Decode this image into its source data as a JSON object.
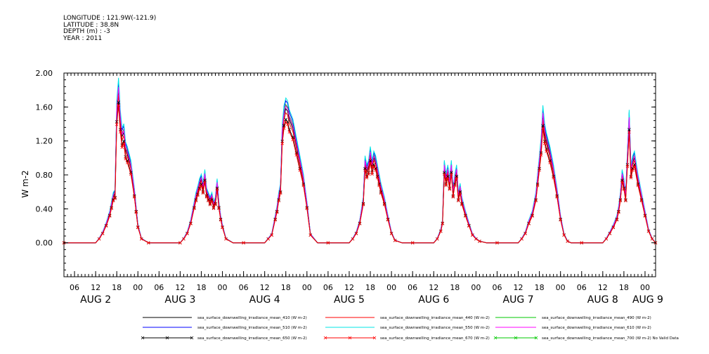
{
  "header": {
    "longitude": "LONGITUDE : 121.9W(-121.9)",
    "latitude": "LATITUDE : 38.8N",
    "depth": "DEPTH (m) : -3",
    "year": "YEAR : 2011"
  },
  "chart_data": {
    "type": "line",
    "title": "",
    "ylabel": "W m-2",
    "xlabel": "",
    "ylim": [
      -0.4,
      2.0
    ],
    "yticks": [
      0.0,
      0.4,
      0.8,
      1.2,
      1.6,
      2.0
    ],
    "ytick_labels": [
      "0.00",
      "0.40",
      "0.80",
      "1.20",
      "1.60",
      "2.00"
    ],
    "x_unit": "hours since AUG 2 00 (2011)",
    "xlim": [
      3,
      171
    ],
    "hour_ticks": [
      6,
      12,
      18,
      24,
      30,
      36,
      42,
      48,
      54,
      60,
      66,
      72,
      78,
      84,
      90,
      96,
      102,
      108,
      114,
      120,
      126,
      132,
      138,
      144,
      150,
      156,
      162,
      168
    ],
    "hour_tick_labels": [
      "06",
      "12",
      "18",
      "00",
      "06",
      "12",
      "18",
      "00",
      "06",
      "12",
      "18",
      "00",
      "06",
      "12",
      "18",
      "00",
      "06",
      "12",
      "18",
      "00",
      "06",
      "12",
      "18",
      "00",
      "06",
      "12",
      "18",
      "00"
    ],
    "day_labels": [
      {
        "label": "AUG  2",
        "hour": 12
      },
      {
        "label": "AUG  3",
        "hour": 36
      },
      {
        "label": "AUG  4",
        "hour": 60
      },
      {
        "label": "AUG  5",
        "hour": 84
      },
      {
        "label": "AUG  6",
        "hour": 108
      },
      {
        "label": "AUG  7",
        "hour": 132
      },
      {
        "label": "AUG  8",
        "hour": 156
      },
      {
        "label": "AUG  9",
        "hour": 168
      }
    ],
    "days": [
      {
        "label": "AUG 2",
        "x": [
          3,
          12,
          13,
          14,
          15,
          16,
          16.5,
          17,
          17.5,
          18,
          18.5,
          19,
          19.5,
          20,
          20.5,
          21,
          22,
          23,
          23.5,
          24,
          25,
          27,
          30
        ],
        "y": [
          0,
          0,
          0.05,
          0.12,
          0.22,
          0.35,
          0.45,
          0.55,
          0.58,
          1.55,
          1.8,
          1.45,
          1.25,
          1.3,
          1.1,
          1.05,
          0.9,
          0.6,
          0.4,
          0.2,
          0.05,
          0,
          0
        ]
      },
      {
        "label": "AUG 3",
        "x": [
          30,
          36,
          37,
          38,
          39,
          40,
          40.5,
          41,
          41.5,
          42,
          42.5,
          43,
          43.5,
          44,
          44.5,
          45,
          45.5,
          46,
          46.5,
          47,
          47.5,
          48,
          49,
          51,
          54
        ],
        "y": [
          0,
          0,
          0.05,
          0.12,
          0.25,
          0.45,
          0.55,
          0.62,
          0.7,
          0.75,
          0.65,
          0.8,
          0.6,
          0.55,
          0.5,
          0.55,
          0.45,
          0.5,
          0.7,
          0.45,
          0.3,
          0.2,
          0.05,
          0,
          0
        ]
      },
      {
        "label": "AUG 4",
        "x": [
          54,
          60,
          61,
          62,
          63,
          63.5,
          64,
          64.5,
          65,
          65.5,
          66,
          66.5,
          67,
          68,
          69,
          70,
          71,
          72,
          73,
          75,
          78
        ],
        "y": [
          0,
          0,
          0.05,
          0.1,
          0.3,
          0.4,
          0.55,
          0.65,
          1.3,
          1.5,
          1.58,
          1.55,
          1.45,
          1.35,
          1.15,
          0.95,
          0.75,
          0.45,
          0.1,
          0,
          0
        ]
      },
      {
        "label": "AUG 5",
        "x": [
          78,
          84,
          85,
          86,
          87,
          88,
          88.5,
          89,
          89.5,
          90,
          90.5,
          91,
          91.5,
          92,
          92.5,
          93,
          94,
          95,
          96,
          97,
          99,
          102
        ],
        "y": [
          0,
          0,
          0.05,
          0.12,
          0.25,
          0.5,
          0.95,
          0.85,
          0.9,
          1.05,
          0.9,
          1.0,
          0.95,
          0.85,
          0.75,
          0.65,
          0.5,
          0.3,
          0.12,
          0.03,
          0,
          0
        ]
      },
      {
        "label": "AUG 6",
        "x": [
          102,
          108,
          109,
          110,
          110.5,
          111,
          111.5,
          112,
          112.5,
          113,
          113.5,
          114,
          114.5,
          115,
          115.5,
          116,
          117,
          118,
          119,
          120,
          121,
          123,
          126
        ],
        "y": [
          0,
          0,
          0.05,
          0.15,
          0.25,
          0.9,
          0.75,
          0.85,
          0.7,
          0.9,
          0.6,
          0.75,
          0.85,
          0.55,
          0.65,
          0.5,
          0.35,
          0.22,
          0.1,
          0.05,
          0.02,
          0,
          0
        ]
      },
      {
        "label": "AUG 7",
        "x": [
          126,
          132,
          133,
          134,
          135,
          136,
          137,
          137.5,
          138,
          138.5,
          139,
          139.5,
          140,
          141,
          142,
          143,
          144,
          145,
          146,
          147,
          150
        ],
        "y": [
          0,
          0,
          0.05,
          0.12,
          0.25,
          0.35,
          0.55,
          0.75,
          0.95,
          1.15,
          1.5,
          1.3,
          1.2,
          1.05,
          0.85,
          0.6,
          0.3,
          0.1,
          0.02,
          0,
          0
        ]
      },
      {
        "label": "AUG 8",
        "x": [
          150,
          156,
          157,
          158,
          159,
          160,
          160.5,
          161,
          161.5,
          162,
          162.5,
          163,
          163.5,
          164,
          164.5,
          165,
          166,
          167,
          168,
          169,
          170,
          171
        ],
        "y": [
          0,
          0,
          0.05,
          0.12,
          0.2,
          0.3,
          0.4,
          0.55,
          0.8,
          0.7,
          0.55,
          1.0,
          1.45,
          0.85,
          0.95,
          1.0,
          0.75,
          0.55,
          0.35,
          0.15,
          0.05,
          0
        ]
      }
    ],
    "series": [
      {
        "name": "sea_surface_downwelling_irradiance_mean_410 (W m-2)",
        "color": "#000000",
        "scale": 1.0,
        "marker": "none"
      },
      {
        "name": "sea_surface_downwelling_irradiance_mean_440 (W m-2)",
        "color": "#ff0000",
        "scale": 0.97,
        "marker": "none"
      },
      {
        "name": "sea_surface_downwelling_irradiance_mean_490 (W m-2)",
        "color": "#00c800",
        "scale": 1.03,
        "marker": "none"
      },
      {
        "name": "sea_surface_downwelling_irradiance_mean_510 (W m-2)",
        "color": "#0000ff",
        "scale": 1.06,
        "marker": "none"
      },
      {
        "name": "sea_surface_downwelling_irradiance_mean_550 (W m-2)",
        "color": "#00e5e5",
        "scale": 1.08,
        "marker": "none"
      },
      {
        "name": "sea_surface_downwelling_irradiance_mean_610 (W m-2)",
        "color": "#ff00ff",
        "scale": 1.02,
        "marker": "none"
      },
      {
        "name": "sea_surface_downwelling_irradiance_mean_650 (W m-2)",
        "color": "#000000",
        "scale": 0.92,
        "marker": "x"
      },
      {
        "name": "sea_surface_downwelling_irradiance_mean_670 (W m-2)",
        "color": "#ff0000",
        "scale": 0.9,
        "marker": "x"
      },
      {
        "name": "sea_surface_downwelling_irradiance_mean_700 (W m-2) No Valid Data",
        "color": "#00c800",
        "scale": 0.0,
        "marker": "x",
        "no_data": true
      }
    ]
  }
}
